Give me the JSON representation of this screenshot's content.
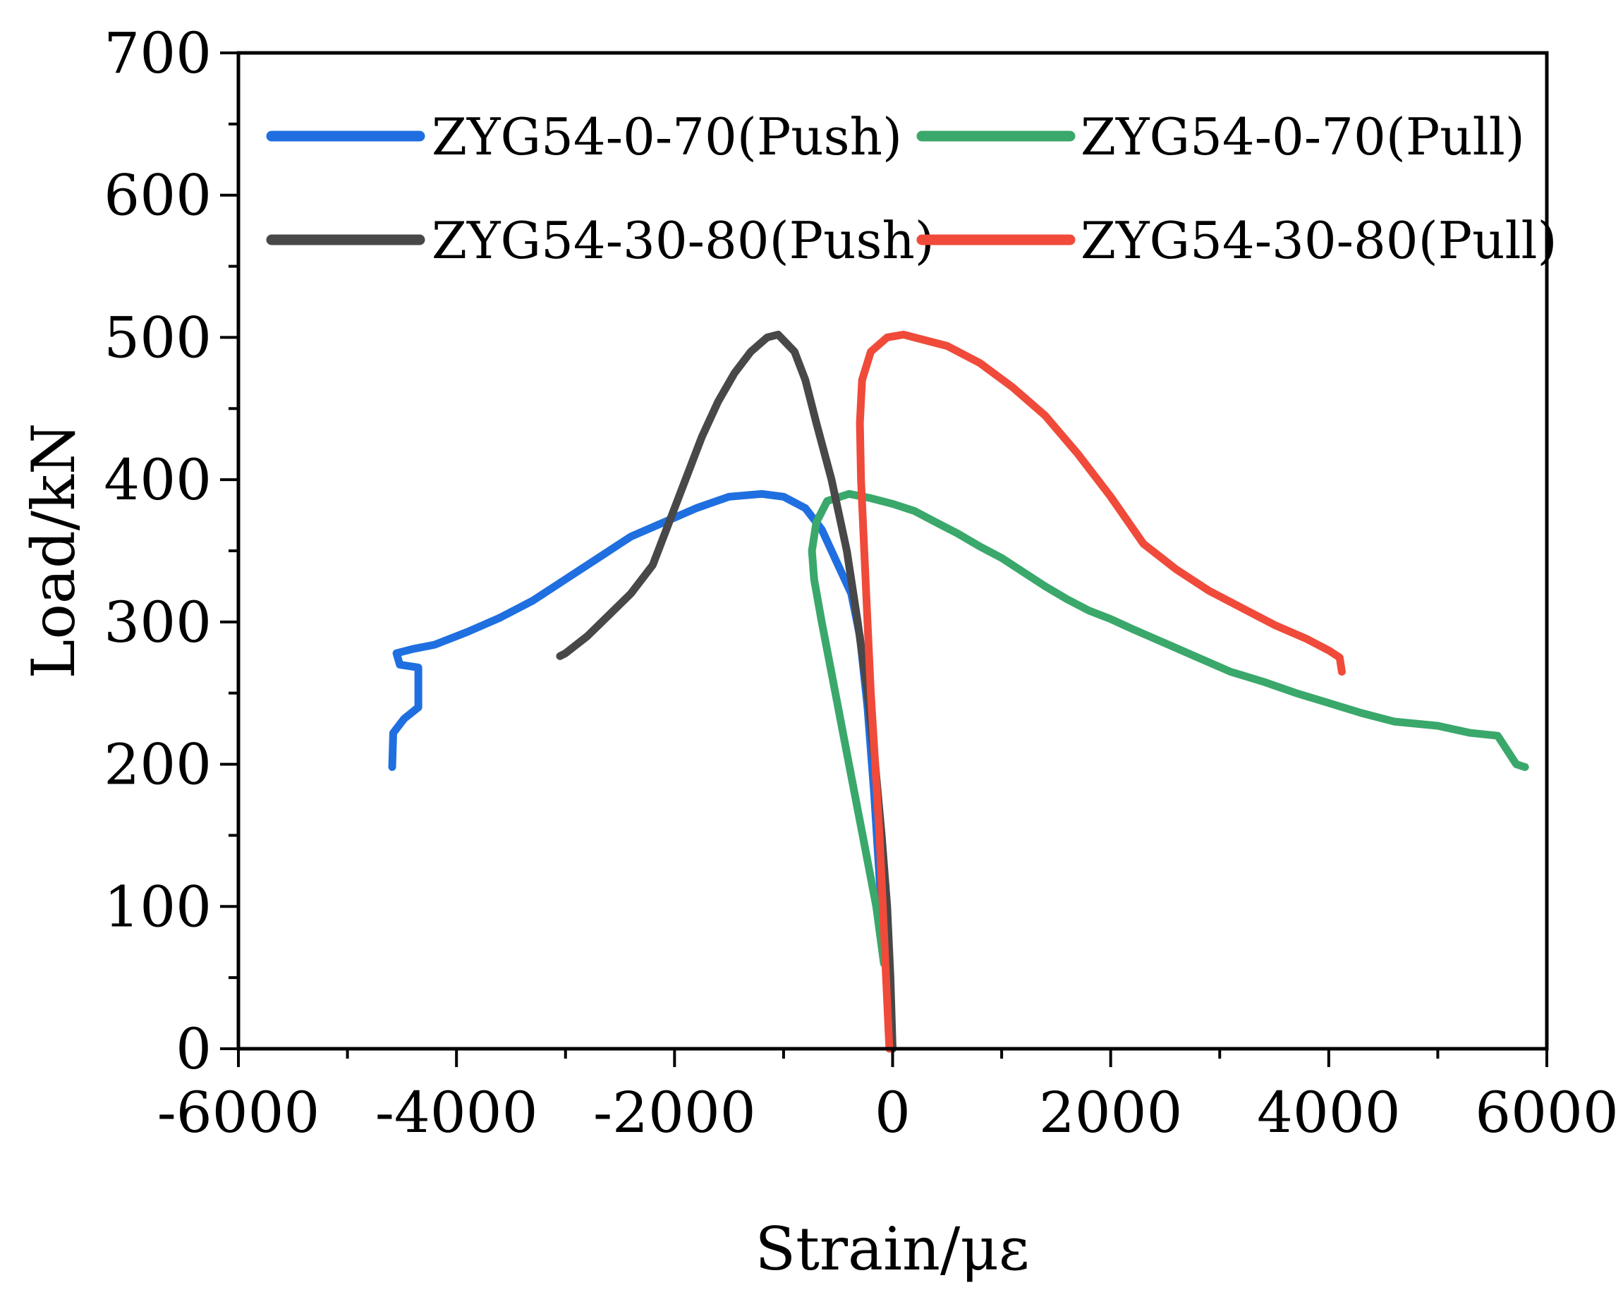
{
  "chart_data": {
    "type": "line",
    "title": "",
    "xlabel": "Strain/με",
    "ylabel": "Load/kN",
    "xlim": [
      -6000,
      6000
    ],
    "ylim": [
      0,
      700
    ],
    "xticks": [
      -6000,
      -4000,
      -2000,
      0,
      2000,
      4000,
      6000
    ],
    "xtick_labels": [
      "-6000",
      "-4000",
      "-2000",
      "0",
      "2000",
      "4000",
      "6000"
    ],
    "yticks": [
      0,
      100,
      200,
      300,
      400,
      500,
      600,
      700
    ],
    "ytick_labels": [
      "0",
      "100",
      "200",
      "300",
      "400",
      "500",
      "600",
      "700"
    ],
    "grid": false,
    "legend_position": "top",
    "series": [
      {
        "name": "ZYG54-0-70(Push)",
        "color": "#1f6fe0",
        "points": [
          [
            0,
            0
          ],
          [
            -60,
            60
          ],
          [
            -120,
            120
          ],
          [
            -170,
            180
          ],
          [
            -230,
            240
          ],
          [
            -300,
            290
          ],
          [
            -380,
            320
          ],
          [
            -500,
            340
          ],
          [
            -650,
            365
          ],
          [
            -800,
            380
          ],
          [
            -1000,
            388
          ],
          [
            -1200,
            390
          ],
          [
            -1500,
            388
          ],
          [
            -1800,
            380
          ],
          [
            -2100,
            370
          ],
          [
            -2400,
            360
          ],
          [
            -2700,
            345
          ],
          [
            -3000,
            330
          ],
          [
            -3300,
            315
          ],
          [
            -3600,
            303
          ],
          [
            -3900,
            293
          ],
          [
            -4200,
            284
          ],
          [
            -4400,
            281
          ],
          [
            -4550,
            278
          ],
          [
            -4520,
            270
          ],
          [
            -4350,
            268
          ],
          [
            -4350,
            240
          ],
          [
            -4480,
            232
          ],
          [
            -4580,
            222
          ],
          [
            -4590,
            198
          ]
        ]
      },
      {
        "name": "ZYG54-0-70(Pull)",
        "color": "#3aa86b",
        "points": [
          [
            -80,
            60
          ],
          [
            -150,
            100
          ],
          [
            -250,
            140
          ],
          [
            -350,
            180
          ],
          [
            -450,
            220
          ],
          [
            -550,
            260
          ],
          [
            -650,
            300
          ],
          [
            -720,
            330
          ],
          [
            -740,
            350
          ],
          [
            -700,
            370
          ],
          [
            -600,
            385
          ],
          [
            -400,
            390
          ],
          [
            -200,
            387
          ],
          [
            0,
            383
          ],
          [
            200,
            378
          ],
          [
            400,
            370
          ],
          [
            600,
            362
          ],
          [
            800,
            353
          ],
          [
            1000,
            345
          ],
          [
            1200,
            335
          ],
          [
            1400,
            325
          ],
          [
            1600,
            316
          ],
          [
            1800,
            308
          ],
          [
            2000,
            302
          ],
          [
            2200,
            295
          ],
          [
            2500,
            285
          ],
          [
            2800,
            275
          ],
          [
            3100,
            265
          ],
          [
            3400,
            258
          ],
          [
            3700,
            250
          ],
          [
            4000,
            243
          ],
          [
            4300,
            236
          ],
          [
            4600,
            230
          ],
          [
            5000,
            227
          ],
          [
            5300,
            222
          ],
          [
            5550,
            220
          ],
          [
            5720,
            200
          ],
          [
            5800,
            198
          ]
        ]
      },
      {
        "name": "ZYG54-30-80(Push)",
        "color": "#484848",
        "points": [
          [
            0,
            0
          ],
          [
            -20,
            50
          ],
          [
            -50,
            100
          ],
          [
            -100,
            150
          ],
          [
            -160,
            200
          ],
          [
            -230,
            250
          ],
          [
            -320,
            300
          ],
          [
            -420,
            350
          ],
          [
            -560,
            400
          ],
          [
            -700,
            440
          ],
          [
            -800,
            470
          ],
          [
            -900,
            490
          ],
          [
            -1050,
            502
          ],
          [
            -1150,
            500
          ],
          [
            -1300,
            490
          ],
          [
            -1450,
            475
          ],
          [
            -1600,
            455
          ],
          [
            -1750,
            430
          ],
          [
            -1900,
            400
          ],
          [
            -2050,
            370
          ],
          [
            -2200,
            340
          ],
          [
            -2400,
            320
          ],
          [
            -2600,
            305
          ],
          [
            -2800,
            290
          ],
          [
            -3000,
            278
          ],
          [
            -3050,
            276
          ]
        ]
      },
      {
        "name": "ZYG54-30-80(Pull)",
        "color": "#f04a3a",
        "points": [
          [
            -30,
            0
          ],
          [
            -60,
            50
          ],
          [
            -90,
            100
          ],
          [
            -120,
            150
          ],
          [
            -160,
            200
          ],
          [
            -200,
            250
          ],
          [
            -230,
            300
          ],
          [
            -260,
            350
          ],
          [
            -290,
            400
          ],
          [
            -300,
            440
          ],
          [
            -280,
            470
          ],
          [
            -200,
            490
          ],
          [
            -50,
            500
          ],
          [
            100,
            502
          ],
          [
            300,
            498
          ],
          [
            500,
            494
          ],
          [
            800,
            482
          ],
          [
            1100,
            465
          ],
          [
            1400,
            445
          ],
          [
            1700,
            418
          ],
          [
            2000,
            388
          ],
          [
            2300,
            355
          ],
          [
            2600,
            337
          ],
          [
            2900,
            322
          ],
          [
            3200,
            310
          ],
          [
            3500,
            298
          ],
          [
            3800,
            288
          ],
          [
            4000,
            280
          ],
          [
            4100,
            275
          ],
          [
            4120,
            265
          ]
        ]
      }
    ]
  }
}
